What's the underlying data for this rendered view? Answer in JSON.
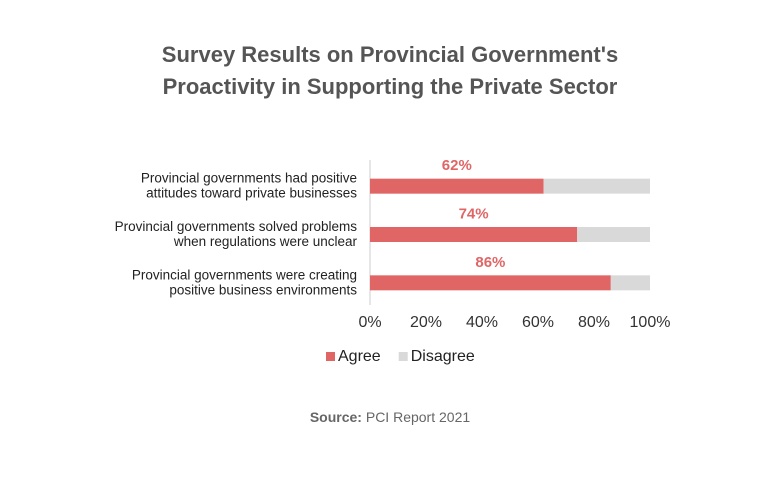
{
  "chart_data": {
    "type": "stacked-barh",
    "title": "Survey Results on Provincial Government's\nProactivity in Supporting the Private Sector",
    "categories": [
      "Provincial governments had positive\nattitudes toward private businesses",
      "Provincial governments solved problems\nwhen regulations were unclear",
      "Provincial governments were creating\npositive business environments"
    ],
    "series": [
      {
        "name": "Agree",
        "color": "#e06666",
        "values": [
          62,
          74,
          86
        ],
        "value_labels": [
          "62%",
          "74%",
          "86%"
        ]
      },
      {
        "name": "Disagree",
        "color": "#d9d9d9",
        "values": [
          38,
          26,
          14
        ]
      }
    ],
    "xlim": [
      0,
      100
    ],
    "xticks": [
      {
        "value": 0,
        "label": "0%"
      },
      {
        "value": 20,
        "label": "20%"
      },
      {
        "value": 40,
        "label": "40%"
      },
      {
        "value": 60,
        "label": "60%"
      },
      {
        "value": 80,
        "label": "80%"
      },
      {
        "value": 100,
        "label": "100%"
      }
    ],
    "grid": false,
    "source_label": "Source:",
    "source": "PCI Report 2021"
  }
}
